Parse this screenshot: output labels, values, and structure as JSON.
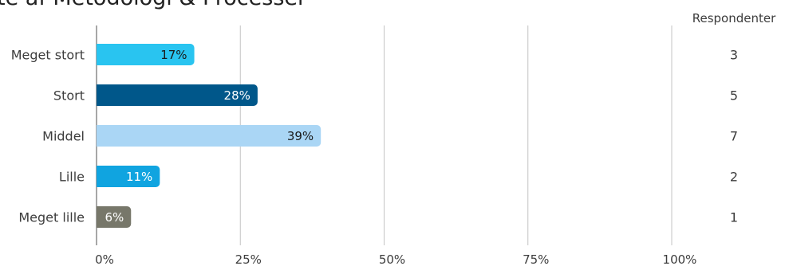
{
  "chart_data": {
    "type": "bar",
    "orientation": "horizontal",
    "title": "te af Metodologi & Processer",
    "categories": [
      "Meget stort",
      "Stort",
      "Middel",
      "Lille",
      "Meget lille"
    ],
    "values": [
      17,
      28,
      39,
      11,
      6
    ],
    "data_labels": [
      "17%",
      "28%",
      "39%",
      "11%",
      "6%"
    ],
    "respondents_header": "Respondenter",
    "respondents": [
      "3",
      "5",
      "7",
      "2",
      "1"
    ],
    "xlim": [
      0,
      100
    ],
    "x_ticks": [
      0,
      25,
      50,
      75,
      100
    ],
    "x_tick_labels": [
      "0%",
      "25%",
      "50%",
      "75%",
      "100%"
    ],
    "grid": true,
    "bar_colors": [
      "#29c4f0",
      "#00578a",
      "#aad6f5",
      "#10a4e0",
      "#77776a"
    ],
    "label_colors": [
      "#1a1a1a",
      "#ffffff",
      "#1a1a1a",
      "#ffffff",
      "#ffffff"
    ]
  }
}
